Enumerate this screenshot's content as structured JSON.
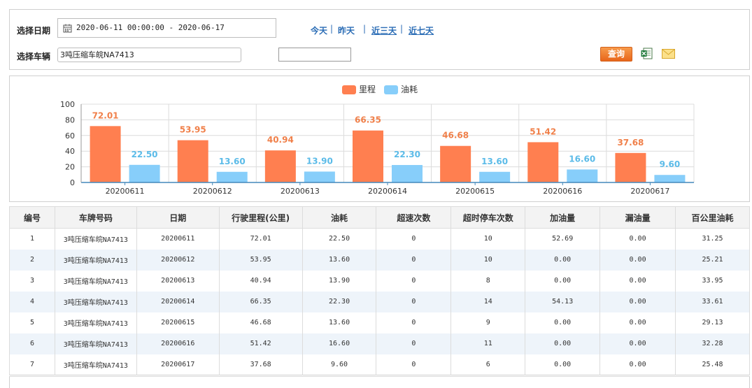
{
  "filters": {
    "date_label": "选择日期",
    "date_value": "2020-06-11 00:00:00 - 2020-06-17",
    "quick_links": [
      "今天",
      "昨天",
      "近三天",
      "近七天"
    ],
    "separators": [
      "|",
      "|",
      "|"
    ],
    "vehicle_label": "选择车辆",
    "vehicle_value": "3吨压缩车皖NA7413",
    "extra_value": "",
    "query_label": "查询",
    "icons": [
      "calendar-icon",
      "excel-export-icon",
      "mail-icon"
    ]
  },
  "chart_data": {
    "type": "bar",
    "categories": [
      "20200611",
      "20200612",
      "20200613",
      "20200614",
      "20200615",
      "20200616",
      "20200617"
    ],
    "series": [
      {
        "name": "里程",
        "color": "#ff7f50",
        "label_color": "#f0804a",
        "values": [
          72.01,
          53.95,
          40.94,
          66.35,
          46.68,
          51.42,
          37.68
        ]
      },
      {
        "name": "油耗",
        "color": "#87cefa",
        "label_color": "#5bbbe8",
        "values": [
          22.5,
          13.6,
          13.9,
          22.3,
          13.6,
          16.6,
          9.6
        ]
      }
    ],
    "ylim": [
      0,
      100
    ],
    "yticks": [
      0,
      20,
      40,
      60,
      80,
      100
    ],
    "grid": true,
    "legend": "top-center",
    "title": "",
    "xlabel": "",
    "ylabel": ""
  },
  "table": {
    "headers": [
      "编号",
      "车牌号码",
      "日期",
      "行驶里程(公里)",
      "油耗",
      "超速次数",
      "超时停车次数",
      "加油量",
      "漏油量",
      "百公里油耗"
    ],
    "rows": [
      [
        "1",
        "3吨压缩车皖NA7413",
        "20200611",
        "72.01",
        "22.50",
        "0",
        "10",
        "52.69",
        "0.00",
        "31.25"
      ],
      [
        "2",
        "3吨压缩车皖NA7413",
        "20200612",
        "53.95",
        "13.60",
        "0",
        "10",
        "0.00",
        "0.00",
        "25.21"
      ],
      [
        "3",
        "3吨压缩车皖NA7413",
        "20200613",
        "40.94",
        "13.90",
        "0",
        "8",
        "0.00",
        "0.00",
        "33.95"
      ],
      [
        "4",
        "3吨压缩车皖NA7413",
        "20200614",
        "66.35",
        "22.30",
        "0",
        "14",
        "54.13",
        "0.00",
        "33.61"
      ],
      [
        "5",
        "3吨压缩车皖NA7413",
        "20200615",
        "46.68",
        "13.60",
        "0",
        "9",
        "0.00",
        "0.00",
        "29.13"
      ],
      [
        "6",
        "3吨压缩车皖NA7413",
        "20200616",
        "51.42",
        "16.60",
        "0",
        "11",
        "0.00",
        "0.00",
        "32.28"
      ],
      [
        "7",
        "3吨压缩车皖NA7413",
        "20200617",
        "37.68",
        "9.60",
        "0",
        "6",
        "0.00",
        "0.00",
        "25.48"
      ]
    ]
  }
}
